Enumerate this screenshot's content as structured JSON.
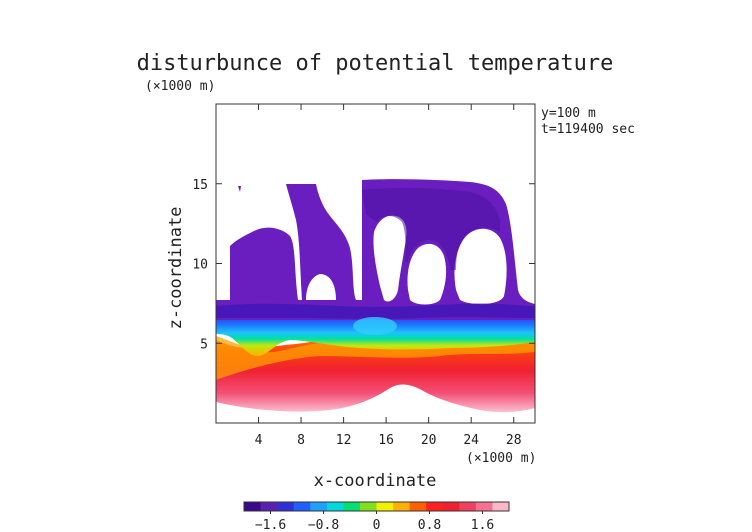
{
  "chart_data": {
    "type": "heatmap",
    "title": "disturbunce of potential temperature",
    "xlabel": "x-coordinate",
    "ylabel": "z-coordinate",
    "x_unit": "(×1000 m)",
    "z_unit": "(×1000 m)",
    "annotations": [
      "y=100 m",
      "t=119400 sec"
    ],
    "x_ticks": [
      4,
      8,
      12,
      16,
      20,
      24,
      28
    ],
    "z_ticks": [
      5,
      10,
      15
    ],
    "xlim": [
      0,
      30
    ],
    "zlim": [
      0,
      20
    ],
    "grid": false,
    "colorbar": {
      "placement": "bottom",
      "range": [
        -2.0,
        2.0
      ],
      "ticks": [
        -1.6,
        -0.8,
        0,
        0.8,
        1.6
      ],
      "tick_labels": [
        "−1.6",
        "−0.8",
        "0",
        "0.8",
        "1.6"
      ],
      "colors": [
        "#3a0a8a",
        "#5a20b0",
        "#3030d8",
        "#2060ff",
        "#1ea0ff",
        "#00d8e0",
        "#00e070",
        "#80e020",
        "#f0f000",
        "#ffb000",
        "#ff6000",
        "#ff2020",
        "#f02030",
        "#f04060",
        "#f87090",
        "#fcb8c8"
      ]
    },
    "field": {
      "neg_layer_top_z": 7.6,
      "transition_z": 5.9,
      "warm_value_range": [
        1.2,
        2.0
      ],
      "cold_value_range": [
        -2.0,
        -1.2
      ],
      "undisturbed_value": 0
    }
  }
}
